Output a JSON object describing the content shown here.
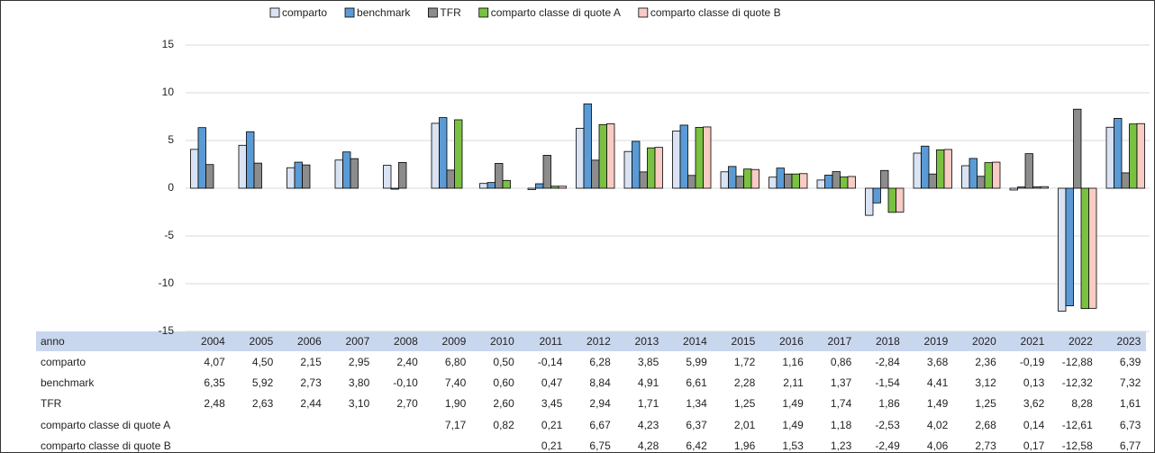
{
  "chart_data": {
    "type": "bar",
    "categories_label": "anno",
    "categories": [
      "2004",
      "2005",
      "2006",
      "2007",
      "2008",
      "2009",
      "2010",
      "2011",
      "2012",
      "2013",
      "2014",
      "2015",
      "2016",
      "2017",
      "2018",
      "2019",
      "2020",
      "2021",
      "2022",
      "2023"
    ],
    "series": [
      {
        "name": "comparto",
        "color": "#dae3f3",
        "values": [
          4.07,
          4.5,
          2.15,
          2.95,
          2.4,
          6.8,
          0.5,
          -0.14,
          6.28,
          3.85,
          5.99,
          1.72,
          1.16,
          0.86,
          -2.84,
          3.68,
          2.36,
          -0.19,
          -12.88,
          6.39
        ],
        "value_labels": [
          "4,07",
          "4,50",
          "2,15",
          "2,95",
          "2,40",
          "6,80",
          "0,50",
          "-0,14",
          "6,28",
          "3,85",
          "5,99",
          "1,72",
          "1,16",
          "0,86",
          "-2,84",
          "3,68",
          "2,36",
          "-0,19",
          "-12,88",
          "6,39"
        ]
      },
      {
        "name": "benchmark",
        "color": "#5b9bd5",
        "values": [
          6.35,
          5.92,
          2.73,
          3.8,
          -0.1,
          7.4,
          0.6,
          0.47,
          8.84,
          4.91,
          6.61,
          2.28,
          2.11,
          1.37,
          -1.54,
          4.41,
          3.12,
          0.13,
          -12.32,
          7.32
        ],
        "value_labels": [
          "6,35",
          "5,92",
          "2,73",
          "3,80",
          "-0,10",
          "7,40",
          "0,60",
          "0,47",
          "8,84",
          "4,91",
          "6,61",
          "2,28",
          "2,11",
          "1,37",
          "-1,54",
          "4,41",
          "3,12",
          "0,13",
          "-12,32",
          "7,32"
        ]
      },
      {
        "name": "TFR",
        "color": "#8c8c8c",
        "values": [
          2.48,
          2.63,
          2.44,
          3.1,
          2.7,
          1.9,
          2.6,
          3.45,
          2.94,
          1.71,
          1.34,
          1.25,
          1.49,
          1.74,
          1.86,
          1.49,
          1.25,
          3.62,
          8.28,
          1.61
        ],
        "value_labels": [
          "2,48",
          "2,63",
          "2,44",
          "3,10",
          "2,70",
          "1,90",
          "2,60",
          "3,45",
          "2,94",
          "1,71",
          "1,34",
          "1,25",
          "1,49",
          "1,74",
          "1,86",
          "1,49",
          "1,25",
          "3,62",
          "8,28",
          "1,61"
        ]
      },
      {
        "name": "comparto classe di quote A",
        "color": "#7ac142",
        "values": [
          null,
          null,
          null,
          null,
          null,
          7.17,
          0.82,
          0.21,
          6.67,
          4.23,
          6.37,
          2.01,
          1.49,
          1.18,
          -2.53,
          4.02,
          2.68,
          0.14,
          -12.61,
          6.73
        ],
        "value_labels": [
          null,
          null,
          null,
          null,
          null,
          "7,17",
          "0,82",
          "0,21",
          "6,67",
          "4,23",
          "6,37",
          "2,01",
          "1,49",
          "1,18",
          "-2,53",
          "4,02",
          "2,68",
          "0,14",
          "-12,61",
          "6,73"
        ]
      },
      {
        "name": "comparto classe di quote B",
        "color": "#f8cbc4",
        "values": [
          null,
          null,
          null,
          null,
          null,
          null,
          null,
          0.21,
          6.75,
          4.28,
          6.42,
          1.96,
          1.53,
          1.23,
          -2.49,
          4.06,
          2.73,
          0.17,
          -12.58,
          6.77
        ],
        "value_labels": [
          null,
          null,
          null,
          null,
          null,
          null,
          null,
          "0,21",
          "6,75",
          "4,28",
          "6,42",
          "1,96",
          "1,53",
          "1,23",
          "-2,49",
          "4,06",
          "2,73",
          "0,17",
          "-12,58",
          "6,77"
        ]
      }
    ],
    "ylim": [
      -15,
      15
    ],
    "yticks": [
      15,
      10,
      5,
      0,
      -5,
      -10,
      -15
    ],
    "grid": true
  }
}
